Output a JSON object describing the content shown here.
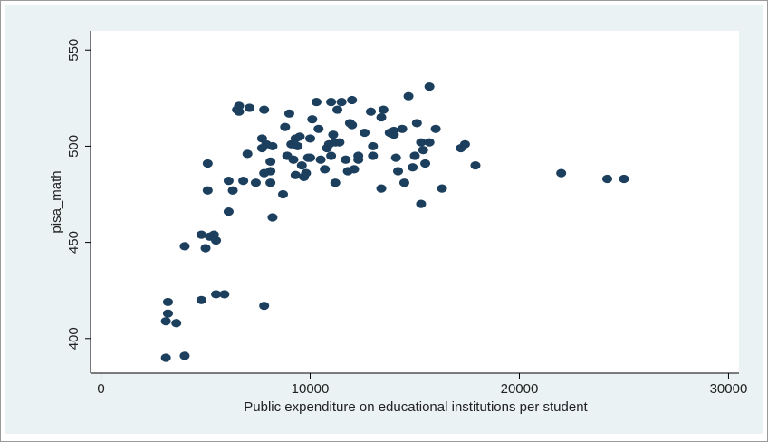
{
  "colors": {
    "outer_background": "#eaf2f3",
    "plot_background": "#ffffff",
    "marker": "#1c3f5e",
    "axis": "#000000"
  },
  "chart_data": {
    "type": "scatter",
    "title": "",
    "xlabel": "Public expenditure on educational institutions per student",
    "ylabel": "pisa_math",
    "xlim": [
      -500,
      30500
    ],
    "ylim": [
      382,
      560
    ],
    "xticks": [
      0,
      10000,
      20000,
      30000
    ],
    "xtick_labels": [
      "0",
      "10000",
      "20000",
      "30000"
    ],
    "yticks": [
      400,
      450,
      500,
      550
    ],
    "ytick_labels": [
      "400",
      "450",
      "500",
      "550"
    ],
    "grid": false,
    "legend": "none",
    "series": [
      {
        "x": [
          3100,
          3200,
          3200,
          3100,
          3600,
          4000,
          4000,
          4800,
          4800,
          5000,
          5100,
          5100,
          5200,
          5400,
          5500,
          5500,
          5900,
          6100,
          6100,
          6300,
          6500,
          6600,
          6600,
          6800,
          7000,
          7100,
          7400,
          7700,
          7700,
          7800,
          7800,
          7800,
          7900,
          8100,
          8100,
          8100,
          8200,
          8200,
          8700,
          8800,
          8900,
          9000,
          9100,
          9200,
          9300,
          9300,
          9400,
          9500,
          9600,
          9700,
          9800,
          9900,
          10000,
          10000,
          10100,
          10300,
          10400,
          10500,
          10700,
          10800,
          10900,
          11000,
          11000,
          11100,
          11200,
          11200,
          11300,
          11400,
          11500,
          11700,
          11800,
          11900,
          12000,
          12000,
          12100,
          12300,
          12300,
          12600,
          12900,
          13000,
          13000,
          13400,
          13400,
          13500,
          13800,
          14000,
          14000,
          14100,
          14200,
          14400,
          14500,
          14700,
          14900,
          15000,
          15100,
          15300,
          15300,
          15400,
          15500,
          15700,
          15700,
          16000,
          16300,
          17200,
          17400,
          17900,
          22000,
          24200,
          25000
        ],
        "y": [
          390,
          419,
          413,
          409,
          408,
          391,
          448,
          420,
          454,
          447,
          491,
          477,
          453,
          454,
          423,
          451,
          423,
          466,
          482,
          477,
          519,
          521,
          518,
          482,
          496,
          520,
          481,
          504,
          499,
          519,
          417,
          486,
          501,
          487,
          492,
          481,
          463,
          500,
          475,
          510,
          495,
          517,
          501,
          493,
          504,
          485,
          500,
          505,
          490,
          484,
          486,
          494,
          504,
          494,
          514,
          523,
          509,
          493,
          488,
          499,
          501,
          523,
          495,
          506,
          502,
          481,
          519,
          502,
          523,
          493,
          487,
          512,
          511,
          524,
          488,
          493,
          495,
          507,
          518,
          495,
          500,
          515,
          478,
          519,
          507,
          506,
          508,
          494,
          487,
          509,
          481,
          526,
          489,
          495,
          512,
          470,
          502,
          498,
          491,
          502,
          531,
          509,
          478,
          499,
          501,
          490,
          486,
          483,
          483
        ]
      }
    ]
  }
}
